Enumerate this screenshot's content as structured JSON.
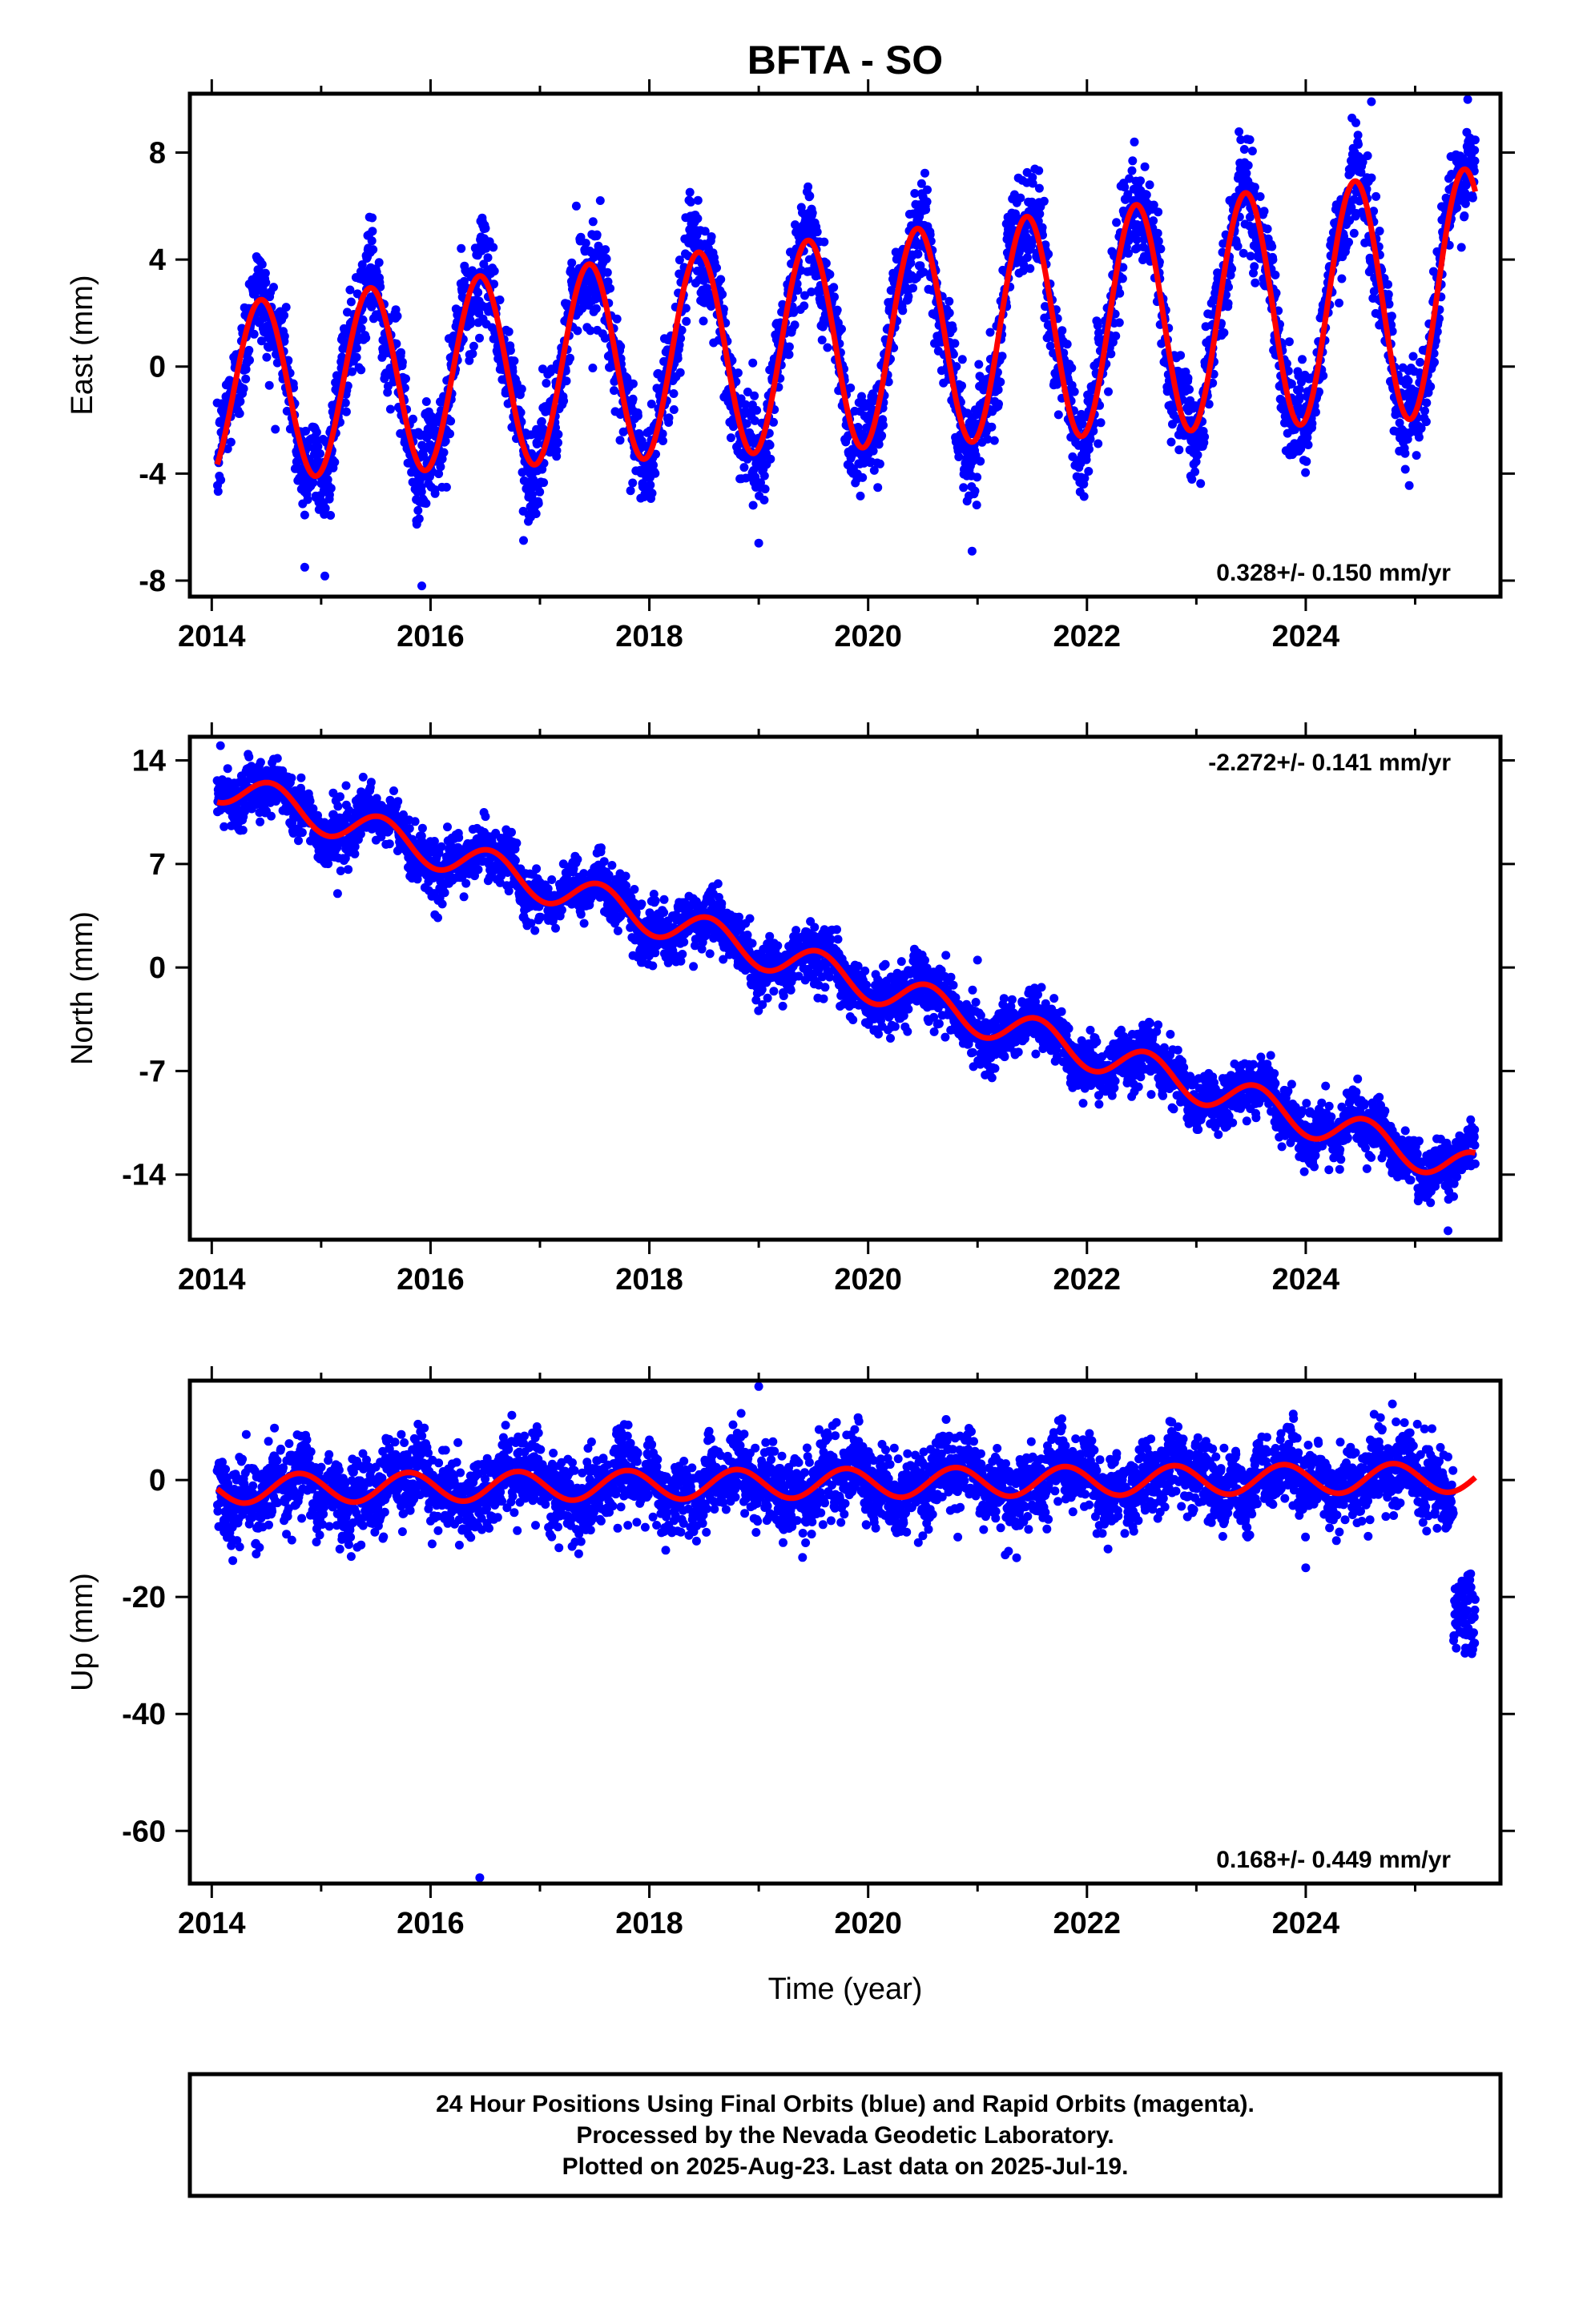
{
  "title": "BFTA - SO",
  "xlabel": "Time (year)",
  "footer": {
    "lines": [
      "24 Hour Positions Using Final Orbits (blue) and Rapid Orbits (magenta).",
      "Processed by the Nevada Geodetic Laboratory.",
      "Plotted on 2025-Aug-23. Last data on 2025-Jul-19."
    ]
  },
  "colors": {
    "points": "#0000ff",
    "model": "#ff0000",
    "axes": "#000000"
  },
  "chart_data": [
    {
      "type": "scatter",
      "name": "east",
      "ylabel": "East (mm)",
      "rate_label": "0.328+/- 0.150 mm/yr",
      "rate_position": "bottom-right",
      "xlim": [
        2013.8,
        2025.78
      ],
      "ylim": [
        -8.6,
        10.2
      ],
      "xticks": [
        2014,
        2016,
        2018,
        2020,
        2022,
        2024
      ],
      "yticks": [
        8,
        4,
        0,
        -4,
        -8
      ],
      "grid": false,
      "data_start": 2014.05,
      "data_end": 2025.55,
      "model": {
        "offset": -1.0,
        "trend": 0.328,
        "annual_amplitude": 3.3,
        "annual_peak_phase": 0.45,
        "amp_growth": 0.035,
        "ref_year": 2014
      },
      "scatter_sd": 0.9,
      "outliers": [
        [
          2014.85,
          -7.5
        ],
        [
          2015.92,
          -8.2
        ],
        [
          2016.85,
          -6.5
        ],
        [
          2019.0,
          -6.6
        ],
        [
          2020.95,
          -6.9
        ],
        [
          2024.6,
          9.9
        ]
      ]
    },
    {
      "type": "scatter",
      "name": "north",
      "ylabel": "North (mm)",
      "rate_label": "-2.272+/- 0.141 mm/yr",
      "rate_position": "top-right",
      "xlim": [
        2013.8,
        2025.78
      ],
      "ylim": [
        -18.4,
        15.6
      ],
      "xticks": [
        2014,
        2016,
        2018,
        2020,
        2022,
        2024
      ],
      "yticks": [
        14,
        7,
        0,
        -7,
        -14
      ],
      "grid": false,
      "data_start": 2014.05,
      "data_end": 2025.55,
      "model": {
        "offset": 12.5,
        "trend": -2.272,
        "annual_amplitude": 1.2,
        "annual_peak_phase": 0.55,
        "amp_growth": 0.0,
        "ref_year": 2014
      },
      "scatter_sd": 0.9,
      "outliers": [
        [
          2014.08,
          15.0
        ],
        [
          2021.0,
          0.5
        ],
        [
          2025.3,
          -17.8
        ],
        [
          2015.15,
          5.0
        ]
      ]
    },
    {
      "type": "scatter",
      "name": "up",
      "ylabel": "Up (mm)",
      "rate_label": "0.168+/- 0.449 mm/yr",
      "rate_position": "bottom-right",
      "xlim": [
        2013.8,
        2025.78
      ],
      "ylim": [
        -69,
        17
      ],
      "xticks": [
        2014,
        2016,
        2018,
        2020,
        2022,
        2024
      ],
      "yticks": [
        0,
        -20,
        -40,
        -60
      ],
      "grid": false,
      "data_start": 2014.05,
      "data_end": 2025.55,
      "model": {
        "offset": -1.5,
        "trend": 0.168,
        "annual_amplitude": 2.5,
        "annual_peak_phase": 0.8,
        "amp_growth": 0.0,
        "ref_year": 2014
      },
      "scatter_sd": 3.2,
      "late_drop": {
        "start": 2025.35,
        "end": 2025.55,
        "min": -30,
        "max": -16
      },
      "outliers": [
        [
          2016.45,
          -68
        ],
        [
          2018.15,
          -12
        ],
        [
          2024.0,
          -15
        ],
        [
          2019.0,
          16
        ]
      ]
    }
  ]
}
